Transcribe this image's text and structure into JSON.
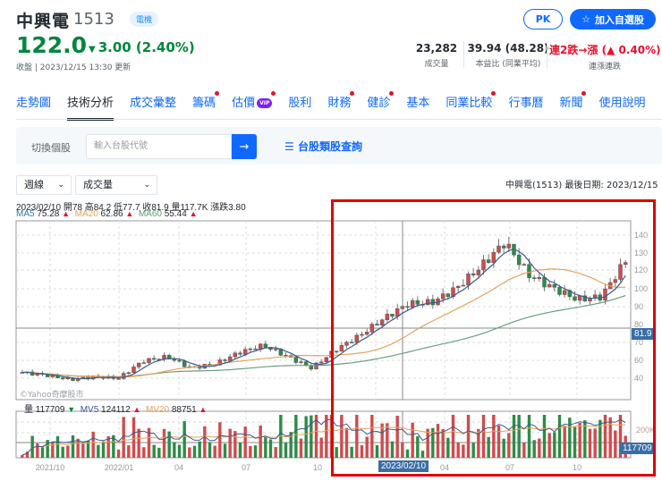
{
  "header": {
    "stock_name": "中興電",
    "stock_code": "1513",
    "industry_badge": "電機",
    "price": "122.0",
    "change": "3.00 (2.40%)",
    "change_direction": "down",
    "update_text": "收盤 | 2023/12/15 13:30 更新",
    "pk_button": "PK",
    "watchlist_button": "加入自選股",
    "stats": [
      {
        "value": "23,282",
        "label": "成交量"
      },
      {
        "value": "39.94 (48.28)",
        "label": "本益比 (同業平均)"
      },
      {
        "value": "連2跌→漲 (▲ 0.40%)",
        "label": "連漲連跌"
      }
    ]
  },
  "tabs": [
    {
      "label": "走勢圖",
      "active": false,
      "dot": false
    },
    {
      "label": "技術分析",
      "active": true,
      "dot": false
    },
    {
      "label": "成交彙整",
      "active": false,
      "dot": false
    },
    {
      "label": "籌碼",
      "active": false,
      "dot": true
    },
    {
      "label": "估價",
      "active": false,
      "dot": true,
      "vip": "VIP"
    },
    {
      "label": "股利",
      "active": false,
      "dot": false
    },
    {
      "label": "財務",
      "active": false,
      "dot": true
    },
    {
      "label": "健診",
      "active": false,
      "dot": true
    },
    {
      "label": "基本",
      "active": false,
      "dot": false
    },
    {
      "label": "同業比較",
      "active": false,
      "dot": true
    },
    {
      "label": "行事曆",
      "active": false,
      "dot": false
    },
    {
      "label": "新聞",
      "active": false,
      "dot": true
    },
    {
      "label": "使用說明",
      "active": false,
      "dot": false
    }
  ],
  "search": {
    "label": "切換個股",
    "placeholder": "輸入台股代號",
    "submit_icon": "→",
    "sector_link": "台股類股查詢"
  },
  "chart_controls": {
    "period_select": "週線",
    "indicator_select": "成交量",
    "chart_info": "中興電(1513)  最後日期: 2023/12/15"
  },
  "chart_legend": {
    "ohlc": "2023/02/10 開78 高84.2 低77.7 收81.9 量117.7K 漲跌3.80",
    "ma5_label": "MA5",
    "ma5_value": "75.28",
    "ma20_label": "MA20",
    "ma20_value": "62.86",
    "ma60_label": "MA60",
    "ma60_value": "55.44",
    "vol_label": "量",
    "vol_value": "117709",
    "mv5_label": "MV5",
    "mv5_value": "124112",
    "mv20_label": "MV20",
    "mv20_value": "88751",
    "watermark": "©Yahoo奇摩股市",
    "crosshair_price": "81.9",
    "crosshair_volume": "117709",
    "crosshair_date": "2023/02/10"
  },
  "colors": {
    "up": "#d14b4b",
    "down": "#2e8b47",
    "ma5": "#3b5b8f",
    "ma20": "#e8a15a",
    "ma60": "#6a9f7f",
    "accent": "#0f69ff",
    "highlight": "#e00000"
  },
  "chart_data": {
    "type": "candlestick",
    "title": "中興電(1513) 週線",
    "y_axis_ticks": [
      "140",
      "130",
      "120",
      "100",
      "90",
      "80",
      "70",
      "60",
      "40"
    ],
    "x_axis_ticks": [
      "2021/10",
      "2022/01",
      "04",
      "07",
      "10",
      "2023/02/10",
      "04",
      "07",
      "10"
    ],
    "volume_axis_ticks": [
      "200K"
    ],
    "selected_point": {
      "date": "2023/02/10",
      "open": 78,
      "high": 84.2,
      "low": 77.7,
      "close": 81.9,
      "volume": 117709,
      "change": 3.8
    },
    "last_price": 122.0,
    "ma": {
      "MA5": 75.28,
      "MA20": 62.86,
      "MA60": 55.44
    },
    "mv": {
      "MV5": 124112,
      "MV20": 88751
    },
    "price_series_approx": [
      {
        "period": "2021/08",
        "close": 44
      },
      {
        "period": "2021/10",
        "close": 42
      },
      {
        "period": "2021/12",
        "close": 39
      },
      {
        "period": "2022/01",
        "close": 41
      },
      {
        "period": "2022/03",
        "close": 40
      },
      {
        "period": "2022/04",
        "close": 52
      },
      {
        "period": "2022/05",
        "close": 55
      },
      {
        "period": "2022/06",
        "close": 47
      },
      {
        "period": "2022/07",
        "close": 50
      },
      {
        "period": "2022/08",
        "close": 58
      },
      {
        "period": "2022/09",
        "close": 63
      },
      {
        "period": "2022/10",
        "close": 55
      },
      {
        "period": "2022/11",
        "close": 47
      },
      {
        "period": "2022/12",
        "close": 60
      },
      {
        "period": "2023/01",
        "close": 70
      },
      {
        "period": "2023/02",
        "close": 81.9
      },
      {
        "period": "2023/03",
        "close": 92
      },
      {
        "period": "2023/04",
        "close": 93
      },
      {
        "period": "2023/05",
        "close": 103
      },
      {
        "period": "2023/06",
        "close": 118
      },
      {
        "period": "2023/07",
        "close": 135
      },
      {
        "period": "2023/08",
        "close": 112
      },
      {
        "period": "2023/09",
        "close": 103
      },
      {
        "period": "2023/10",
        "close": 95
      },
      {
        "period": "2023/11",
        "close": 97
      },
      {
        "period": "2023/12",
        "close": 122
      }
    ]
  }
}
